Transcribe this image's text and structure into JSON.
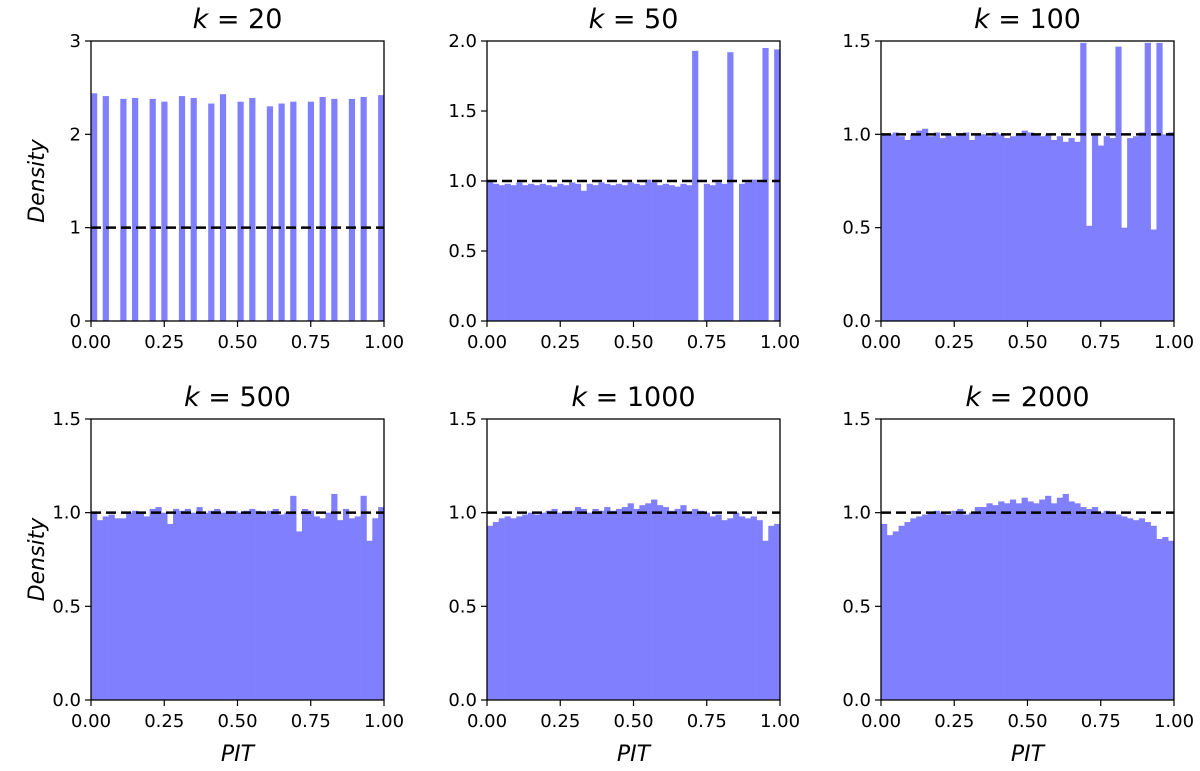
{
  "figure": {
    "bar_color": "#8080ff",
    "reference_line_color": "#000000",
    "x_axis_label": "PIT",
    "y_axis_label": "Density"
  },
  "chart_data": [
    {
      "type": "bar",
      "title_var": "k",
      "title_value": "= 20",
      "xlim": [
        0,
        1
      ],
      "ylim": [
        0,
        3
      ],
      "xticks": [
        "0.00",
        "0.25",
        "0.50",
        "0.75",
        "1.00"
      ],
      "yticks": [
        "0",
        "1",
        "2",
        "3"
      ],
      "ytick_values": [
        0,
        1,
        2,
        3
      ],
      "ylabel": "Density",
      "xlabel": "",
      "reference_line": 1.0,
      "bins": 50,
      "values": [
        2.44,
        0,
        2.41,
        0,
        0,
        2.38,
        0,
        2.39,
        0,
        0,
        2.38,
        0,
        2.35,
        0,
        0,
        2.41,
        0,
        2.39,
        0,
        0,
        2.33,
        0,
        2.43,
        0,
        0,
        2.35,
        0,
        2.39,
        0,
        0,
        2.3,
        0,
        2.33,
        0,
        2.35,
        0,
        0,
        2.35,
        0,
        2.4,
        0,
        2.38,
        0,
        0,
        2.38,
        0,
        2.4,
        0,
        0,
        2.42
      ]
    },
    {
      "type": "bar",
      "title_var": "k",
      "title_value": "= 50",
      "xlim": [
        0,
        1
      ],
      "ylim": [
        0,
        2
      ],
      "xticks": [
        "0.00",
        "0.25",
        "0.50",
        "0.75",
        "1.00"
      ],
      "yticks": [
        "0.0",
        "0.5",
        "1.0",
        "1.5",
        "2.0"
      ],
      "ytick_values": [
        0,
        0.5,
        1.0,
        1.5,
        2.0
      ],
      "ylabel": "",
      "xlabel": "",
      "reference_line": 1.0,
      "bins": 50,
      "values": [
        1.0,
        0.98,
        0.97,
        0.98,
        0.97,
        0.99,
        0.97,
        0.98,
        0.97,
        0.98,
        0.97,
        0.96,
        0.98,
        0.97,
        0.99,
        0.98,
        0.93,
        0.98,
        0.97,
        0.99,
        0.98,
        0.97,
        0.98,
        0.97,
        0.99,
        0.98,
        0.97,
        1.01,
        0.99,
        0.97,
        0.98,
        0.97,
        0.96,
        0.98,
        0.97,
        1.93,
        0,
        0.98,
        0.97,
        0.99,
        0.98,
        1.92,
        0,
        0.98,
        0.99,
        1.01,
        0.99,
        1.95,
        0,
        1.94
      ]
    },
    {
      "type": "bar",
      "title_var": "k",
      "title_value": "= 100",
      "xlim": [
        0,
        1
      ],
      "ylim": [
        0,
        1.5
      ],
      "xticks": [
        "0.00",
        "0.25",
        "0.50",
        "0.75",
        "1.00"
      ],
      "yticks": [
        "0.0",
        "0.5",
        "1.0",
        "1.5"
      ],
      "ytick_values": [
        0,
        0.5,
        1.0,
        1.5
      ],
      "ylabel": "",
      "xlabel": "",
      "reference_line": 1.0,
      "bins": 50,
      "values": [
        1.0,
        1.0,
        1.01,
        0.99,
        0.97,
        1.0,
        1.02,
        1.03,
        0.99,
        1.01,
        0.98,
        1.0,
        0.99,
        1.0,
        1.01,
        0.97,
        1.0,
        1.0,
        0.99,
        1.01,
        1.0,
        0.98,
        0.99,
        1.0,
        1.02,
        1.01,
        1.0,
        0.99,
        1.0,
        0.97,
        0.99,
        0.96,
        0.98,
        0.96,
        1.49,
        0.51,
        1.0,
        0.94,
        0.99,
        0.98,
        1.47,
        0.5,
        0.98,
        0.99,
        1.01,
        1.49,
        0.49,
        1.49,
        1.0,
        1.01
      ]
    },
    {
      "type": "bar",
      "title_var": "k",
      "title_value": "= 500",
      "xlim": [
        0,
        1
      ],
      "ylim": [
        0,
        1.5
      ],
      "xticks": [
        "0.00",
        "0.25",
        "0.50",
        "0.75",
        "1.00"
      ],
      "yticks": [
        "0.0",
        "0.5",
        "1.0",
        "1.5"
      ],
      "ytick_values": [
        0,
        0.5,
        1.0,
        1.5
      ],
      "ylabel": "Density",
      "xlabel": "PIT",
      "reference_line": 1.0,
      "bins": 50,
      "values": [
        1.0,
        0.96,
        0.98,
        0.99,
        0.97,
        0.97,
        1.0,
        1.01,
        1.0,
        0.98,
        1.02,
        1.03,
        1.0,
        0.94,
        1.02,
        1.01,
        1.02,
        1.0,
        1.03,
        1.0,
        1.01,
        1.02,
        1.0,
        1.01,
        1.01,
        1.0,
        1.01,
        1.02,
        1.01,
        1.0,
        1.01,
        1.02,
        0.99,
        1.0,
        1.09,
        0.9,
        1.02,
        1.01,
        0.98,
        0.97,
        1.0,
        1.1,
        0.96,
        1.02,
        0.97,
        0.98,
        1.09,
        0.85,
        0.97,
        1.03
      ]
    },
    {
      "type": "bar",
      "title_var": "k",
      "title_value": "= 1000",
      "xlim": [
        0,
        1
      ],
      "ylim": [
        0,
        1.5
      ],
      "xticks": [
        "0.00",
        "0.25",
        "0.50",
        "0.75",
        "1.00"
      ],
      "yticks": [
        "0.0",
        "0.5",
        "1.0",
        "1.5"
      ],
      "ytick_values": [
        0,
        0.5,
        1.0,
        1.5
      ],
      "ylabel": "",
      "xlabel": "PIT",
      "reference_line": 1.0,
      "bins": 50,
      "values": [
        0.93,
        0.95,
        0.97,
        0.98,
        0.97,
        0.98,
        0.99,
        1.0,
        0.99,
        1.0,
        1.01,
        1.02,
        1.0,
        1.01,
        1.01,
        1.03,
        1.02,
        1.0,
        1.02,
        1.01,
        1.03,
        1.01,
        1.02,
        1.03,
        1.05,
        1.02,
        1.04,
        1.05,
        1.07,
        1.04,
        1.03,
        1.01,
        1.02,
        1.04,
        1.0,
        1.02,
        1.01,
        1.0,
        0.98,
        0.99,
        0.96,
        0.97,
        1.0,
        0.98,
        0.97,
        0.98,
        0.96,
        0.85,
        0.93,
        0.94
      ]
    },
    {
      "type": "bar",
      "title_var": "k",
      "title_value": "= 2000",
      "xlim": [
        0,
        1
      ],
      "ylim": [
        0,
        1.5
      ],
      "xticks": [
        "0.00",
        "0.25",
        "0.50",
        "0.75",
        "1.00"
      ],
      "yticks": [
        "0.0",
        "0.5",
        "1.0",
        "1.5"
      ],
      "ytick_values": [
        0,
        0.5,
        1.0,
        1.5
      ],
      "ylabel": "",
      "xlabel": "PIT",
      "reference_line": 1.0,
      "bins": 50,
      "values": [
        0.94,
        0.88,
        0.9,
        0.93,
        0.95,
        0.97,
        0.98,
        0.99,
        1.0,
        1.01,
        1.0,
        0.99,
        1.01,
        1.02,
        0.99,
        1.0,
        1.03,
        1.03,
        1.05,
        1.04,
        1.06,
        1.05,
        1.07,
        1.05,
        1.08,
        1.06,
        1.05,
        1.07,
        1.09,
        1.05,
        1.08,
        1.1,
        1.06,
        1.05,
        1.03,
        1.02,
        1.03,
        1.0,
        1.01,
        1.0,
        0.99,
        0.98,
        0.97,
        0.96,
        0.97,
        0.95,
        0.93,
        0.86,
        0.87,
        0.85
      ]
    }
  ]
}
